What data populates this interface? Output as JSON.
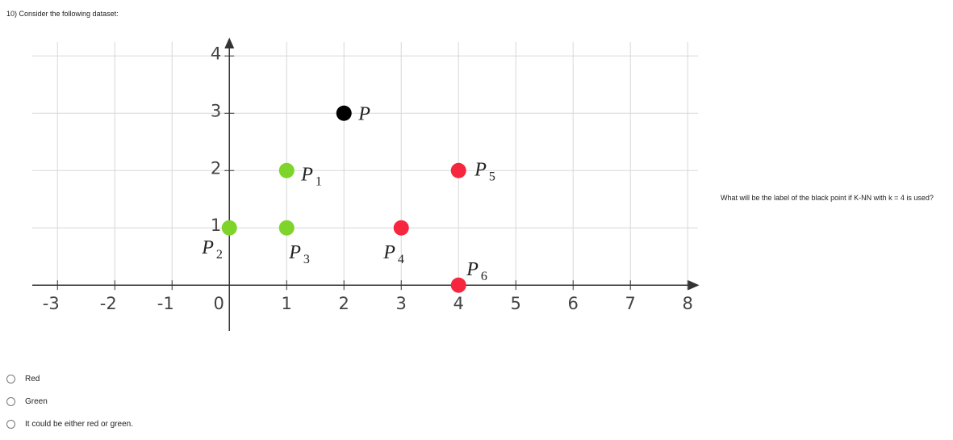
{
  "header": {
    "title": "10) Consider the following dataset:"
  },
  "chart_data": {
    "type": "scatter",
    "xlim": [
      -3.44,
      8.18
    ],
    "ylim": [
      -0.8,
      4.3
    ],
    "xticks": [
      -3,
      -2,
      -1,
      0,
      1,
      2,
      3,
      4,
      5,
      6,
      7,
      8
    ],
    "yticks": [
      1,
      2,
      3,
      4
    ],
    "grid": true,
    "points": [
      {
        "label": "P",
        "sub": "1",
        "x": 1,
        "y": 2,
        "color": "#7ed42b"
      },
      {
        "label": "P",
        "sub": "2",
        "x": 0,
        "y": 1,
        "color": "#7ed42b"
      },
      {
        "label": "P",
        "sub": "3",
        "x": 1,
        "y": 1,
        "color": "#7ed42b"
      },
      {
        "label": "P",
        "sub": "4",
        "x": 3,
        "y": 1,
        "color": "#f5263e"
      },
      {
        "label": "P",
        "sub": "5",
        "x": 4,
        "y": 2,
        "color": "#f5263e"
      },
      {
        "label": "P",
        "sub": "6",
        "x": 4,
        "y": 0,
        "color": "#f5263e"
      },
      {
        "label": "P",
        "x": 2,
        "y": 3,
        "color": "#000000"
      }
    ]
  },
  "side_question": "What will be the label of the black point if K-NN with k = 4 is used?",
  "options": [
    "Red",
    "Green",
    "It could be either red or green."
  ]
}
